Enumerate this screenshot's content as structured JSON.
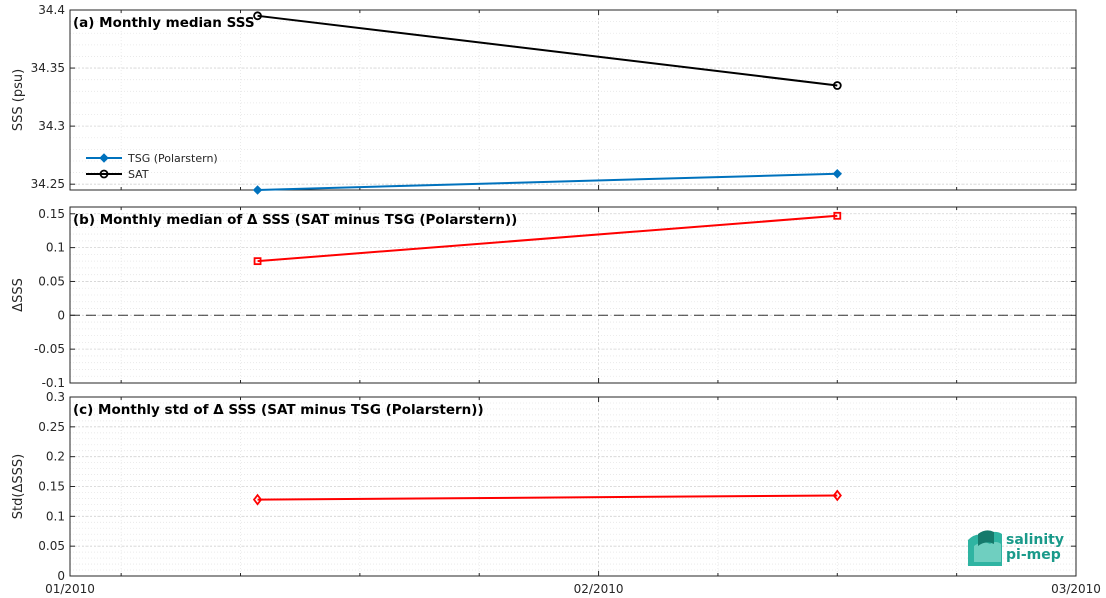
{
  "x_axis": {
    "ticks": [
      "01/2010",
      "02/2010",
      "03/2010"
    ],
    "range": [
      "2010-01-01",
      "2010-03-01"
    ]
  },
  "chart_data": [
    {
      "type": "line",
      "title": "(a) Monthly median SSS",
      "ylabel": "SSS (psu)",
      "ylim": [
        34.245,
        34.4
      ],
      "yticks": [
        "34.25",
        "34.3",
        "34.35",
        "34.4"
      ],
      "grid": true,
      "legend_position": "bottom-left",
      "series": [
        {
          "name": "TSG (Polarstern)",
          "color": "#0072bd",
          "marker": "diamond-filled",
          "x": [
            "2010-01-12",
            "2010-02-15"
          ],
          "y": [
            34.245,
            34.259
          ]
        },
        {
          "name": "SAT",
          "color": "#000000",
          "marker": "circle-open",
          "x": [
            "2010-01-12",
            "2010-02-15"
          ],
          "y": [
            34.395,
            34.335
          ]
        }
      ]
    },
    {
      "type": "line",
      "title": "(b) Monthly median of Δ SSS (SAT minus TSG (Polarstern))",
      "ylabel": "ΔSSS",
      "ylim": [
        -0.1,
        0.16
      ],
      "yticks": [
        "-0.1",
        "-0.05",
        "0",
        "0.05",
        "0.1",
        "0.15"
      ],
      "grid": true,
      "reference_line": {
        "y": 0,
        "style": "dashed"
      },
      "series": [
        {
          "color": "#ff0000",
          "marker": "square-open",
          "x": [
            "2010-01-12",
            "2010-02-15"
          ],
          "y": [
            0.08,
            0.147
          ]
        }
      ]
    },
    {
      "type": "line",
      "title": "(c) Monthly std of Δ SSS (SAT minus TSG (Polarstern))",
      "ylabel": "Std(ΔSSS)",
      "ylim": [
        0,
        0.3
      ],
      "yticks": [
        "0",
        "0.05",
        "0.1",
        "0.15",
        "0.2",
        "0.25",
        "0.3"
      ],
      "grid": true,
      "series": [
        {
          "color": "#ff0000",
          "marker": "diamond-open",
          "x": [
            "2010-01-12",
            "2010-02-15"
          ],
          "y": [
            0.128,
            0.135
          ]
        }
      ]
    }
  ],
  "logo": {
    "line1": "salinity",
    "line2": "pi-mep",
    "color": "#1a9a8a"
  }
}
